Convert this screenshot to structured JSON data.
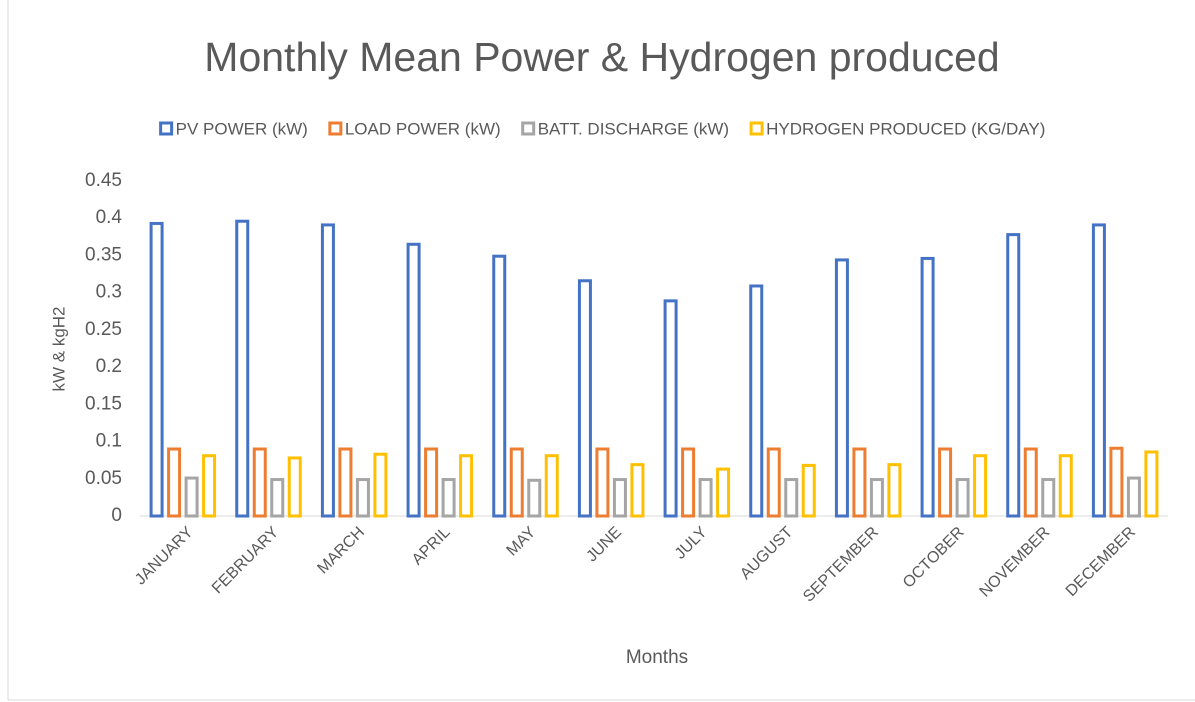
{
  "chart_data": {
    "type": "bar",
    "title": "Monthly Mean Power & Hydrogen  produced",
    "x_label": "Months",
    "y_label": "kW & kgH2",
    "categories": [
      "JANUARY",
      "FEBRUARY",
      "MARCH",
      "APRIL",
      "MAY",
      "JUNE",
      "JULY",
      "AUGUST",
      "SEPTEMBER",
      "OCTOBER",
      "NOVEMBER",
      "DECEMBER"
    ],
    "series": [
      {
        "name": "PV POWER (kW)",
        "color": "#4472c4",
        "values": [
          0.395,
          0.398,
          0.393,
          0.367,
          0.351,
          0.318,
          0.291,
          0.311,
          0.346,
          0.348,
          0.38,
          0.393
        ]
      },
      {
        "name": "LOAD POWER (kW)",
        "color": "#ed7d31",
        "values": [
          0.092,
          0.092,
          0.092,
          0.092,
          0.092,
          0.092,
          0.092,
          0.092,
          0.092,
          0.092,
          0.092,
          0.093
        ]
      },
      {
        "name": "BATT. DISCHARGE (kW)",
        "color": "#a5a5a5",
        "values": [
          0.053,
          0.051,
          0.051,
          0.051,
          0.05,
          0.051,
          0.051,
          0.051,
          0.051,
          0.051,
          0.051,
          0.053
        ]
      },
      {
        "name": "HYDROGEN PRODUCED (KG/DAY)",
        "color": "#ffc000",
        "values": [
          0.083,
          0.08,
          0.085,
          0.083,
          0.083,
          0.071,
          0.065,
          0.07,
          0.071,
          0.083,
          0.083,
          0.088
        ]
      }
    ],
    "ylim": [
      0,
      0.45
    ],
    "yticks": [
      0,
      0.05,
      0.1,
      0.15,
      0.2,
      0.25,
      0.3,
      0.35,
      0.4,
      0.45
    ],
    "grid": false,
    "legend": "top"
  }
}
